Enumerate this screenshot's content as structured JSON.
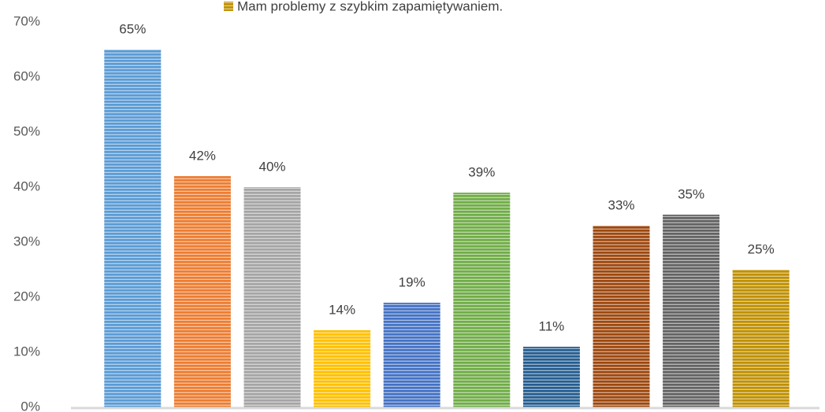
{
  "chart_data": {
    "type": "bar",
    "legend": {
      "label": "Mam problemy z szybkim zapamiętywaniem.",
      "color": "#bf9000"
    },
    "categories": [
      null,
      null,
      null,
      null,
      null,
      null,
      null,
      null,
      null,
      null
    ],
    "values": [
      65,
      42,
      40,
      14,
      19,
      39,
      11,
      33,
      35,
      25
    ],
    "value_labels": [
      "65%",
      "42%",
      "40%",
      "14%",
      "19%",
      "39%",
      "11%",
      "33%",
      "35%",
      "25%"
    ],
    "colors": [
      "#5b9bd5",
      "#ed7d31",
      "#a5a5a5",
      "#ffc000",
      "#4472c4",
      "#70ad47",
      "#255e91",
      "#9e480e",
      "#636363",
      "#bf9000"
    ],
    "ylim": [
      0,
      70
    ],
    "yticks": [
      {
        "value": 0,
        "label": "0%"
      },
      {
        "value": 10,
        "label": "10%"
      },
      {
        "value": 20,
        "label": "20%"
      },
      {
        "value": 30,
        "label": "30%"
      },
      {
        "value": 40,
        "label": "40%"
      },
      {
        "value": 50,
        "label": "50%"
      },
      {
        "value": 60,
        "label": "60%"
      },
      {
        "value": 70,
        "label": "70%"
      }
    ],
    "grid": false
  }
}
